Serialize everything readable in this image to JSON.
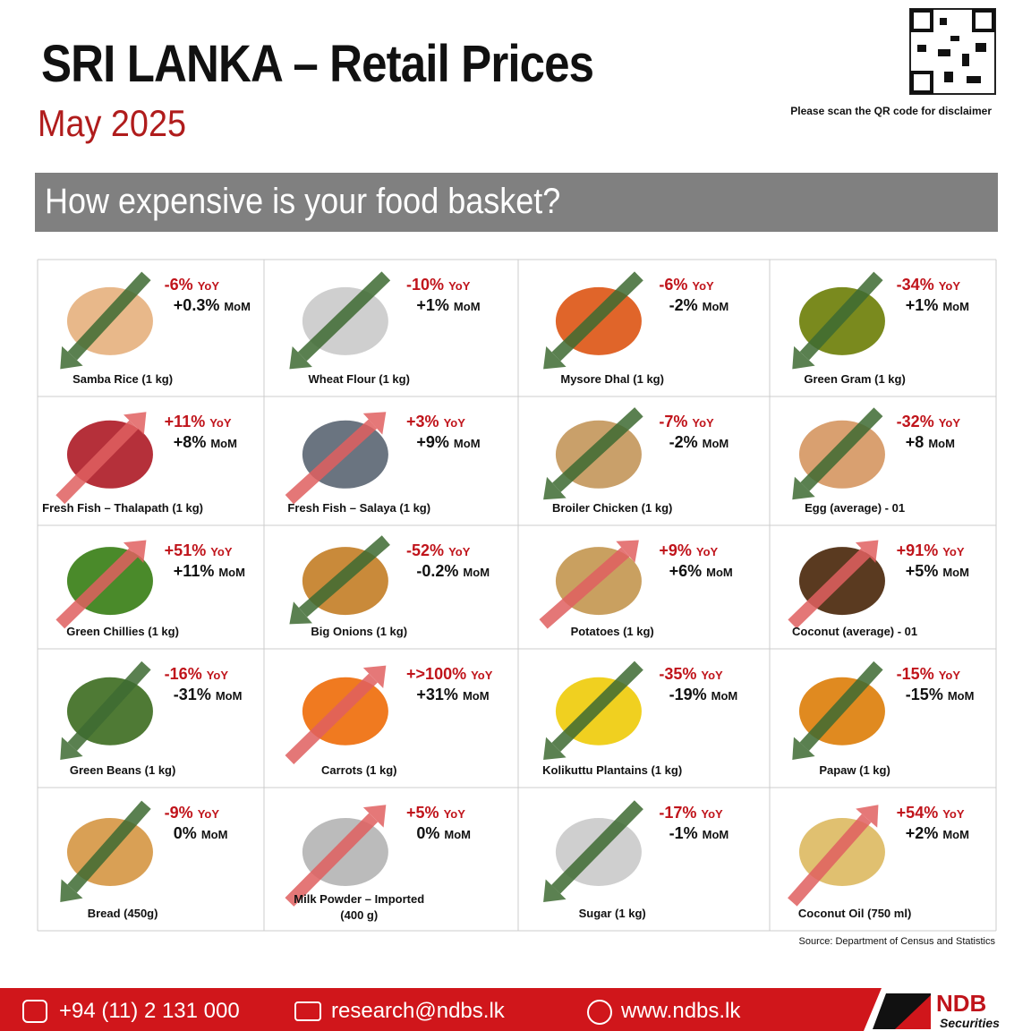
{
  "header": {
    "title": "SRI LANKA – Retail Prices",
    "subtitle": "May 2025",
    "qr_note": "Please scan the QR code for disclaimer"
  },
  "banner": "How expensive is your food basket?",
  "yoy_label": "YoY",
  "mom_label": "MoM",
  "items": [
    {
      "name": "Samba Rice (1 kg)",
      "yoy": "-6%",
      "mom": "+0.3%"
    },
    {
      "name": "Wheat Flour (1 kg)",
      "yoy": "-10%",
      "mom": "+1%"
    },
    {
      "name": "Mysore Dhal (1 kg)",
      "yoy": "-6%",
      "mom": "-2%"
    },
    {
      "name": "Green Gram (1 kg)",
      "yoy": "-34%",
      "mom": "+1%"
    },
    {
      "name": "Fresh Fish – Thalapath (1 kg)",
      "yoy": "+11%",
      "mom": "+8%"
    },
    {
      "name": "Fresh Fish – Salaya (1 kg)",
      "yoy": "+3%",
      "mom": "+9%"
    },
    {
      "name": "Broiler Chicken (1 kg)",
      "yoy": "-7%",
      "mom": "-2%"
    },
    {
      "name": "Egg (average) - 01",
      "yoy": "-32%",
      "mom": "+8"
    },
    {
      "name": "Green Chillies (1 kg)",
      "yoy": "+51%",
      "mom": "+11%"
    },
    {
      "name": "Big Onions (1 kg)",
      "yoy": "-52%",
      "mom": "-0.2%"
    },
    {
      "name": "Potatoes (1 kg)",
      "yoy": "+9%",
      "mom": "+6%"
    },
    {
      "name": "Coconut (average) - 01",
      "yoy": "+91%",
      "mom": "+5%"
    },
    {
      "name": "Green Beans (1 kg)",
      "yoy": "-16%",
      "mom": "-31%"
    },
    {
      "name": "Carrots (1 kg)",
      "yoy": "+>100%",
      "mom": "+31%"
    },
    {
      "name": "Kolikuttu Plantains (1 kg)",
      "yoy": "-35%",
      "mom": "-19%"
    },
    {
      "name": "Papaw (1 kg)",
      "yoy": "-15%",
      "mom": "-15%"
    },
    {
      "name": "Bread (450g)",
      "yoy": "-9%",
      "mom": "0%"
    },
    {
      "name": "Milk Powder – Imported\n(400 g)",
      "yoy": "+5%",
      "mom": "0%"
    },
    {
      "name": "Sugar (1 kg)",
      "yoy": "-17%",
      "mom": "-1%"
    },
    {
      "name": "Coconut Oil (750 ml)",
      "yoy": "+54%",
      "mom": "+2%"
    }
  ],
  "source": "Source: Department of Census and Statistics",
  "footer": {
    "phone": "+94 (11) 2 131 000",
    "email": "research@ndbs.lk",
    "website": "www.ndbs.lk",
    "brand": "NDB",
    "brand_sub": "Securities"
  }
}
